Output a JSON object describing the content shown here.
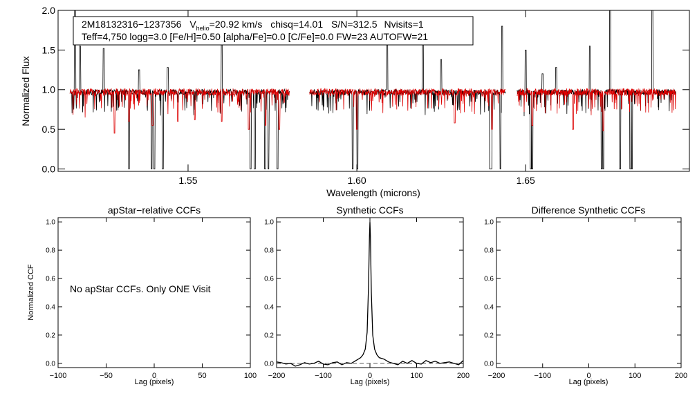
{
  "chart_data": [
    {
      "type": "line",
      "panel": "spectrum",
      "title": "",
      "xlabel": "Wavelength (microns)",
      "ylabel": "Normalized Flux",
      "xlim": [
        1.5115,
        1.6985
      ],
      "ylim": [
        -0.03,
        2.0
      ],
      "x_ticks": [
        1.55,
        1.6,
        1.65
      ],
      "x_tick_labels": [
        "1.55",
        "1.60",
        "1.65"
      ],
      "y_ticks": [
        0.0,
        0.5,
        1.0,
        1.5,
        2.0
      ],
      "y_tick_labels": [
        "0.0",
        "0.5",
        "1.0",
        "1.5",
        "2.0"
      ],
      "header_line1": {
        "apogee_id": "2M18132316−1237356",
        "vhelio_prefix": "V",
        "vhelio_sub": "helio",
        "vhelio_value": "=20.92 km/s",
        "chisq": "chisq=14.01",
        "snr": "S/N=312.5",
        "nvisits": "Nvisits=1"
      },
      "header_line2": "Teff=4,750 logg=3.0 [Fe/H]=0.50 [alpha/Fe]=0.0 [C/Fe]=0.0 FW=23 AUTOFW=21",
      "chips": [
        [
          1.515,
          1.58
        ],
        [
          1.586,
          1.644
        ],
        [
          1.6475,
          1.6945
        ]
      ],
      "series": [
        {
          "name": "",
          "color": "#000000",
          "continuum": 0.97,
          "noise": 0.035,
          "absorption_lines": [
            [
              1.5325,
              0.0
            ],
            [
              1.5392,
              0.0
            ],
            [
              1.54,
              0.0
            ],
            [
              1.5425,
              0.0
            ],
            [
              1.5685,
              0.0
            ],
            [
              1.5698,
              0.0
            ],
            [
              1.5728,
              0.0
            ],
            [
              1.5738,
              0.0
            ],
            [
              1.5765,
              0.0
            ],
            [
              1.5988,
              0.0
            ],
            [
              1.6002,
              0.0
            ],
            [
              1.6395,
              0.0
            ],
            [
              1.6398,
              0.0
            ],
            [
              1.6425,
              0.0
            ],
            [
              1.6515,
              0.0
            ],
            [
              1.652,
              0.0
            ],
            [
              1.6725,
              0.0
            ],
            [
              1.673,
              0.0
            ],
            [
              1.678,
              0.0
            ],
            [
              1.681,
              0.0
            ],
            [
              1.6815,
              0.0
            ]
          ],
          "emission_spikes": [
            [
              1.5165,
              2.0
            ],
            [
              1.518,
              1.55
            ],
            [
              1.525,
              1.52
            ],
            [
              1.5355,
              1.25
            ],
            [
              1.544,
              1.28
            ],
            [
              1.56,
              1.75
            ],
            [
              1.609,
              1.78
            ],
            [
              1.6195,
              1.75
            ],
            [
              1.625,
              1.38
            ],
            [
              1.643,
              1.8
            ],
            [
              1.65,
              1.5
            ],
            [
              1.655,
              1.2
            ],
            [
              1.659,
              1.28
            ],
            [
              1.669,
              1.55
            ],
            [
              1.675,
              2.0
            ],
            [
              1.6875,
              2.0
            ]
          ]
        },
        {
          "name": "",
          "color": "#dd0000",
          "continuum": 0.97,
          "noise": 0.045,
          "absorption_lines": [
            [
              1.5282,
              0.45
            ],
            [
              1.5325,
              0.6
            ],
            [
              1.5395,
              0.55
            ],
            [
              1.547,
              0.6
            ],
            [
              1.552,
              0.62
            ],
            [
              1.56,
              0.6
            ],
            [
              1.568,
              0.5
            ],
            [
              1.573,
              0.55
            ],
            [
              1.577,
              0.5
            ],
            [
              1.6,
              0.5
            ],
            [
              1.629,
              0.58
            ],
            [
              1.64,
              0.5
            ],
            [
              1.652,
              0.55
            ],
            [
              1.664,
              0.5
            ],
            [
              1.673,
              0.48
            ]
          ]
        }
      ]
    },
    {
      "type": "line",
      "panel": "apstar-ccf",
      "title": "apStar−relative CCFs",
      "xlabel": "Lag (pixels)",
      "ylabel": "Normalized CCF",
      "xlim": [
        -100,
        100
      ],
      "ylim": [
        -0.03,
        1.03
      ],
      "x_ticks": [
        -100,
        -50,
        0,
        50,
        100
      ],
      "x_tick_labels": [
        "−100",
        "−50",
        "0",
        "50",
        "100"
      ],
      "y_ticks": [
        0.0,
        0.2,
        0.4,
        0.6,
        0.8,
        1.0
      ],
      "y_tick_labels": [
        "0.0",
        "0.2",
        "0.4",
        "0.6",
        "0.8",
        "1.0"
      ],
      "annotation": "No apStar CCFs.  Only ONE Visit",
      "series": []
    },
    {
      "type": "line",
      "panel": "synthetic-ccf",
      "title": "Synthetic CCFs",
      "xlabel": "Lag (pixels)",
      "xlim": [
        -200,
        200
      ],
      "ylim": [
        -0.03,
        1.03
      ],
      "x_ticks": [
        -200,
        -100,
        0,
        100,
        200
      ],
      "x_tick_labels": [
        "−200",
        "−100",
        "0",
        "100",
        "200"
      ],
      "y_ticks": [
        0.0,
        0.2,
        0.4,
        0.6,
        0.8,
        1.0
      ],
      "y_tick_labels": [
        "0.0",
        "0.2",
        "0.4",
        "0.6",
        "0.8",
        "1.0"
      ],
      "reference_line": {
        "y": 0.0,
        "style": "dashed"
      },
      "series": [
        {
          "name": "",
          "color": "#000000",
          "x": [
            -200,
            -190,
            -180,
            -170,
            -160,
            -150,
            -140,
            -130,
            -120,
            -110,
            -100,
            -90,
            -80,
            -70,
            -60,
            -50,
            -40,
            -30,
            -20,
            -15,
            -10,
            -6,
            -3,
            -1,
            0,
            1,
            3,
            6,
            10,
            15,
            20,
            30,
            40,
            50,
            60,
            70,
            80,
            90,
            100,
            110,
            120,
            130,
            140,
            150,
            160,
            170,
            180,
            190,
            200
          ],
          "y": [
            0.01,
            0.005,
            -0.005,
            0.0,
            -0.02,
            -0.01,
            0.005,
            -0.005,
            0.0,
            0.015,
            -0.005,
            -0.01,
            0.005,
            0.01,
            -0.01,
            0.005,
            0.0,
            0.02,
            0.04,
            0.06,
            0.1,
            0.22,
            0.55,
            0.9,
            1.0,
            0.9,
            0.5,
            0.2,
            0.1,
            0.06,
            0.04,
            0.03,
            0.01,
            0.0,
            -0.01,
            0.015,
            0.0,
            0.02,
            0.0,
            -0.005,
            0.02,
            0.005,
            0.015,
            0.0,
            0.005,
            0.01,
            0.0,
            -0.01,
            0.02
          ]
        }
      ]
    },
    {
      "type": "line",
      "panel": "difference-ccf",
      "title": "Difference Synthetic CCFs",
      "xlabel": "Lag (pixels)",
      "xlim": [
        -200,
        200
      ],
      "ylim": [
        -0.03,
        1.03
      ],
      "x_ticks": [
        -200,
        -100,
        0,
        100,
        200
      ],
      "x_tick_labels": [
        "−200",
        "−100",
        "0",
        "100",
        "200"
      ],
      "y_ticks": [
        0.0,
        0.2,
        0.4,
        0.6,
        0.8,
        1.0
      ],
      "y_tick_labels": [
        "0.0",
        "0.2",
        "0.4",
        "0.6",
        "0.8",
        "1.0"
      ],
      "series": []
    }
  ]
}
